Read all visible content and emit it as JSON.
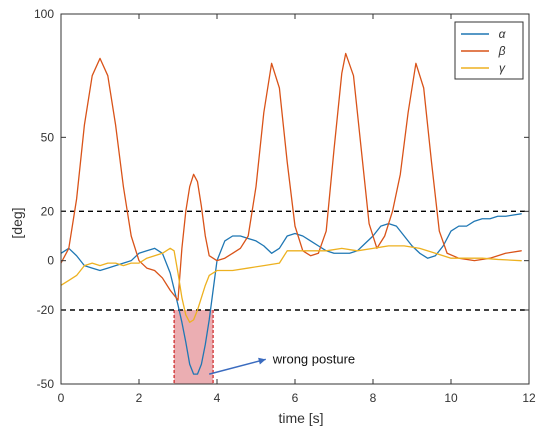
{
  "chart_data": {
    "type": "line",
    "title": "",
    "xlabel": "time [s]",
    "ylabel": "[deg]",
    "xlim": [
      0,
      12
    ],
    "ylim": [
      -50,
      100
    ],
    "x_ticks": [
      0,
      2,
      4,
      6,
      8,
      10,
      12
    ],
    "y_ticks": [
      -50,
      -20,
      0,
      20,
      50,
      100
    ],
    "grid": false,
    "legend_position": "top-right",
    "thresholds": [
      20,
      -20
    ],
    "highlight": {
      "x_range": [
        2.9,
        3.9
      ],
      "y_range": [
        -50,
        -20
      ],
      "color": "#e8a0a4"
    },
    "annotation": {
      "text": "wrong posture",
      "arrow_from": [
        5.25,
        -40
      ],
      "arrow_to": [
        3.8,
        -46
      ]
    },
    "series": [
      {
        "name": "α",
        "color": "#1f77b4",
        "points": [
          [
            0,
            3
          ],
          [
            0.2,
            5
          ],
          [
            0.4,
            2
          ],
          [
            0.6,
            -2
          ],
          [
            0.8,
            -3
          ],
          [
            1.0,
            -4
          ],
          [
            1.2,
            -3
          ],
          [
            1.4,
            -2
          ],
          [
            1.6,
            -1
          ],
          [
            1.8,
            0
          ],
          [
            2.0,
            3
          ],
          [
            2.2,
            4
          ],
          [
            2.4,
            5
          ],
          [
            2.6,
            3
          ],
          [
            2.8,
            -5
          ],
          [
            3.0,
            -18
          ],
          [
            3.1,
            -25
          ],
          [
            3.2,
            -33
          ],
          [
            3.3,
            -42
          ],
          [
            3.4,
            -46
          ],
          [
            3.5,
            -46
          ],
          [
            3.6,
            -42
          ],
          [
            3.7,
            -34
          ],
          [
            3.8,
            -24
          ],
          [
            3.9,
            -12
          ],
          [
            4.0,
            0
          ],
          [
            4.2,
            8
          ],
          [
            4.4,
            10
          ],
          [
            4.6,
            10
          ],
          [
            4.8,
            9
          ],
          [
            5.0,
            8
          ],
          [
            5.2,
            6
          ],
          [
            5.4,
            3
          ],
          [
            5.6,
            5
          ],
          [
            5.8,
            10
          ],
          [
            6.0,
            11
          ],
          [
            6.2,
            10
          ],
          [
            6.4,
            8
          ],
          [
            6.6,
            6
          ],
          [
            6.8,
            4
          ],
          [
            7.0,
            3
          ],
          [
            7.2,
            3
          ],
          [
            7.4,
            3
          ],
          [
            7.6,
            4
          ],
          [
            7.8,
            7
          ],
          [
            8.0,
            10
          ],
          [
            8.2,
            14
          ],
          [
            8.4,
            15
          ],
          [
            8.6,
            14
          ],
          [
            8.8,
            10
          ],
          [
            9.0,
            6
          ],
          [
            9.2,
            3
          ],
          [
            9.4,
            1
          ],
          [
            9.6,
            2
          ],
          [
            9.8,
            6
          ],
          [
            10.0,
            12
          ],
          [
            10.2,
            14
          ],
          [
            10.4,
            14
          ],
          [
            10.6,
            16
          ],
          [
            10.8,
            17
          ],
          [
            11.0,
            17
          ],
          [
            11.2,
            18
          ],
          [
            11.4,
            18
          ],
          [
            11.6,
            18.5
          ],
          [
            11.8,
            19
          ]
        ]
      },
      {
        "name": "β",
        "color": "#d95319",
        "points": [
          [
            0,
            -1
          ],
          [
            0.2,
            5
          ],
          [
            0.4,
            25
          ],
          [
            0.6,
            55
          ],
          [
            0.8,
            75
          ],
          [
            1.0,
            82
          ],
          [
            1.2,
            75
          ],
          [
            1.4,
            55
          ],
          [
            1.6,
            30
          ],
          [
            1.8,
            10
          ],
          [
            2.0,
            0
          ],
          [
            2.2,
            -3
          ],
          [
            2.4,
            -4
          ],
          [
            2.6,
            -7
          ],
          [
            2.8,
            -12
          ],
          [
            3.0,
            -16
          ],
          [
            3.1,
            5
          ],
          [
            3.2,
            20
          ],
          [
            3.3,
            30
          ],
          [
            3.4,
            35
          ],
          [
            3.5,
            32
          ],
          [
            3.6,
            22
          ],
          [
            3.7,
            10
          ],
          [
            3.8,
            2
          ],
          [
            4.0,
            0
          ],
          [
            4.2,
            1
          ],
          [
            4.4,
            3
          ],
          [
            4.6,
            5
          ],
          [
            4.8,
            10
          ],
          [
            5.0,
            30
          ],
          [
            5.2,
            60
          ],
          [
            5.4,
            80
          ],
          [
            5.6,
            70
          ],
          [
            5.8,
            40
          ],
          [
            6.0,
            14
          ],
          [
            6.2,
            4
          ],
          [
            6.4,
            2
          ],
          [
            6.6,
            3
          ],
          [
            6.8,
            12
          ],
          [
            7.0,
            45
          ],
          [
            7.2,
            76
          ],
          [
            7.3,
            84
          ],
          [
            7.5,
            75
          ],
          [
            7.7,
            45
          ],
          [
            7.9,
            15
          ],
          [
            8.1,
            5
          ],
          [
            8.3,
            10
          ],
          [
            8.5,
            20
          ],
          [
            8.7,
            35
          ],
          [
            8.9,
            60
          ],
          [
            9.1,
            80
          ],
          [
            9.3,
            70
          ],
          [
            9.5,
            40
          ],
          [
            9.7,
            12
          ],
          [
            9.9,
            3
          ],
          [
            10.2,
            1
          ],
          [
            10.6,
            0
          ],
          [
            11.0,
            1
          ],
          [
            11.4,
            3
          ],
          [
            11.8,
            4
          ]
        ]
      },
      {
        "name": "γ",
        "color": "#edb120",
        "points": [
          [
            0,
            -10
          ],
          [
            0.2,
            -8
          ],
          [
            0.4,
            -6
          ],
          [
            0.6,
            -2
          ],
          [
            0.8,
            -1
          ],
          [
            1.0,
            -2
          ],
          [
            1.2,
            -1
          ],
          [
            1.4,
            -1
          ],
          [
            1.6,
            -2
          ],
          [
            1.8,
            -1
          ],
          [
            2.0,
            -1
          ],
          [
            2.2,
            1
          ],
          [
            2.4,
            2
          ],
          [
            2.6,
            3
          ],
          [
            2.8,
            5
          ],
          [
            2.9,
            4
          ],
          [
            3.0,
            -5
          ],
          [
            3.1,
            -15
          ],
          [
            3.2,
            -22
          ],
          [
            3.3,
            -25
          ],
          [
            3.4,
            -24
          ],
          [
            3.5,
            -20
          ],
          [
            3.6,
            -15
          ],
          [
            3.7,
            -10
          ],
          [
            3.8,
            -6
          ],
          [
            4.0,
            -4
          ],
          [
            4.4,
            -4
          ],
          [
            4.8,
            -3
          ],
          [
            5.2,
            -2
          ],
          [
            5.6,
            -1
          ],
          [
            5.8,
            4
          ],
          [
            6.0,
            4
          ],
          [
            6.4,
            4
          ],
          [
            6.8,
            4
          ],
          [
            7.2,
            5
          ],
          [
            7.6,
            4
          ],
          [
            8.0,
            5
          ],
          [
            8.4,
            6
          ],
          [
            8.8,
            6
          ],
          [
            9.2,
            5
          ],
          [
            9.6,
            3
          ],
          [
            10.0,
            1
          ],
          [
            10.4,
            1
          ],
          [
            10.8,
            1
          ],
          [
            11.2,
            0.5
          ],
          [
            11.8,
            0
          ]
        ]
      }
    ]
  }
}
